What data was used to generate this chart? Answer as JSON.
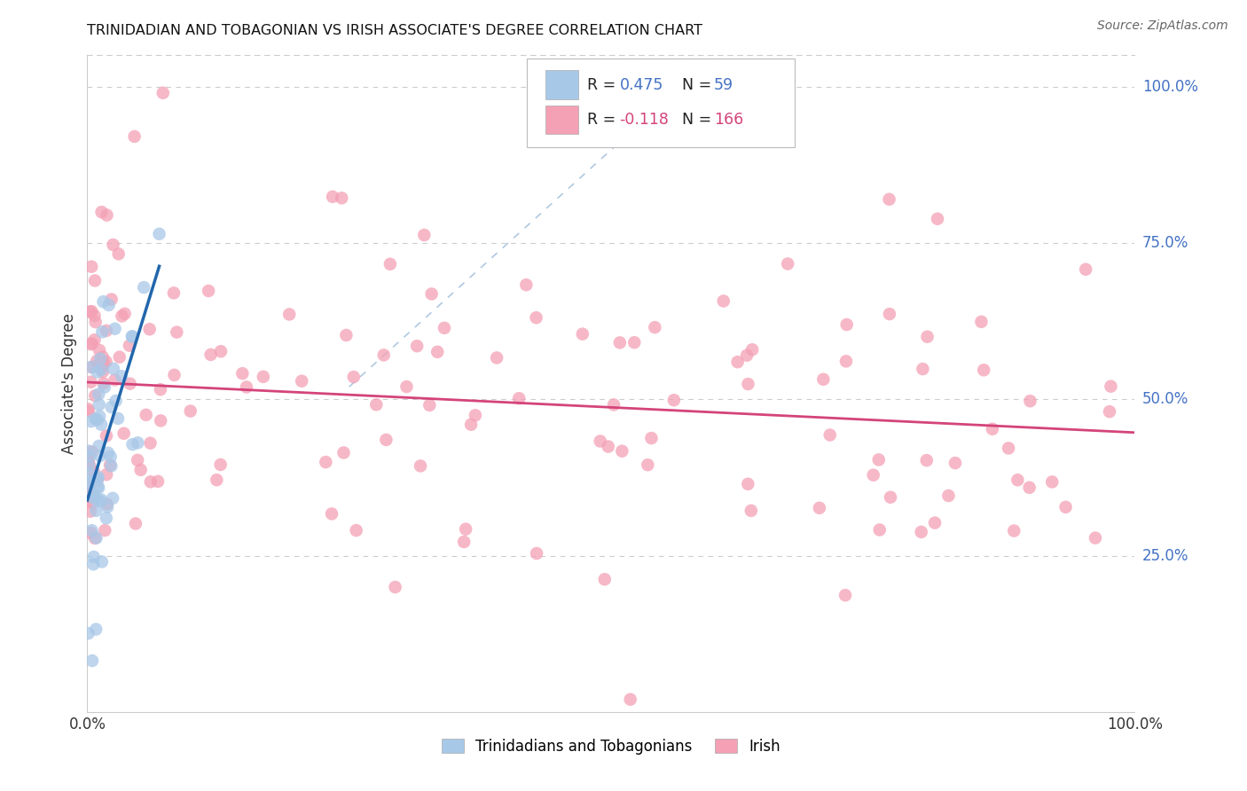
{
  "title": "TRINIDADIAN AND TOBAGONIAN VS IRISH ASSOCIATE'S DEGREE CORRELATION CHART",
  "source": "Source: ZipAtlas.com",
  "ylabel": "Associate's Degree",
  "blue_color": "#a8c8e8",
  "pink_color": "#f4a0b5",
  "blue_line_color": "#2166ac",
  "pink_line_color": "#d4447a",
  "diagonal_color": "#b0c8e0",
  "blue_r": 0.475,
  "blue_n": 59,
  "pink_r": -0.118,
  "pink_n": 166,
  "ytick_color": "#4472C4",
  "text_color": "#333333"
}
